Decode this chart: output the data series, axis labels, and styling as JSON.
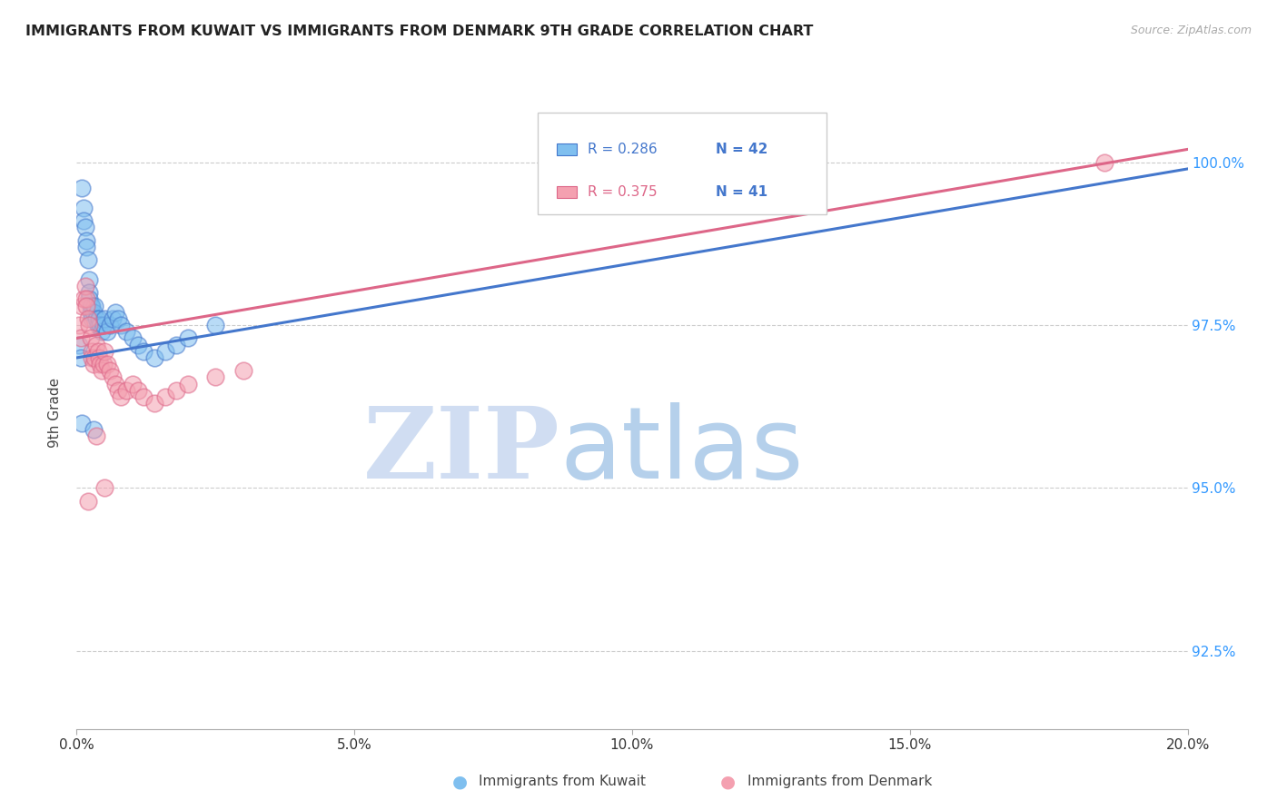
{
  "title": "IMMIGRANTS FROM KUWAIT VS IMMIGRANTS FROM DENMARK 9TH GRADE CORRELATION CHART",
  "source": "Source: ZipAtlas.com",
  "ylabel": "9th Grade",
  "y_ticks": [
    92.5,
    95.0,
    97.5,
    100.0
  ],
  "y_tick_labels": [
    "92.5%",
    "95.0%",
    "97.5%",
    "100.0%"
  ],
  "x_ticks": [
    0,
    5,
    10,
    15,
    20
  ],
  "x_tick_labels": [
    "0.0%",
    "5.0%",
    "10.0%",
    "15.0%",
    "20.0%"
  ],
  "x_min": 0.0,
  "x_max": 20.0,
  "y_min": 91.3,
  "y_max": 101.0,
  "kuwait_color": "#7fbfef",
  "denmark_color": "#f4a0b0",
  "kuwait_line_color": "#4477cc",
  "denmark_line_color": "#dd6688",
  "kuwait_R": "0.286",
  "kuwait_N": "42",
  "denmark_R": "0.375",
  "denmark_N": "41",
  "kuwait_x": [
    0.05,
    0.08,
    0.1,
    0.12,
    0.13,
    0.15,
    0.17,
    0.18,
    0.2,
    0.22,
    0.22,
    0.23,
    0.25,
    0.25,
    0.27,
    0.28,
    0.3,
    0.32,
    0.35,
    0.38,
    0.4,
    0.42,
    0.45,
    0.48,
    0.5,
    0.55,
    0.6,
    0.65,
    0.7,
    0.75,
    0.8,
    0.9,
    1.0,
    1.1,
    1.2,
    1.4,
    1.6,
    1.8,
    2.0,
    2.5,
    0.1,
    0.3
  ],
  "kuwait_y": [
    97.2,
    97.0,
    99.6,
    99.3,
    99.1,
    99.0,
    98.8,
    98.7,
    98.5,
    98.2,
    98.0,
    97.9,
    97.8,
    97.7,
    97.6,
    97.8,
    97.7,
    97.8,
    97.6,
    97.5,
    97.6,
    97.5,
    97.4,
    97.5,
    97.6,
    97.4,
    97.5,
    97.6,
    97.7,
    97.6,
    97.5,
    97.4,
    97.3,
    97.2,
    97.1,
    97.0,
    97.1,
    97.2,
    97.3,
    97.5,
    96.0,
    95.9
  ],
  "denmark_x": [
    0.05,
    0.08,
    0.1,
    0.12,
    0.15,
    0.17,
    0.18,
    0.2,
    0.22,
    0.25,
    0.27,
    0.28,
    0.3,
    0.32,
    0.35,
    0.38,
    0.4,
    0.42,
    0.45,
    0.48,
    0.5,
    0.55,
    0.6,
    0.65,
    0.7,
    0.75,
    0.8,
    0.9,
    1.0,
    1.1,
    1.2,
    1.4,
    1.6,
    1.8,
    2.0,
    2.5,
    3.0,
    0.35,
    0.5,
    18.5,
    0.2
  ],
  "denmark_y": [
    97.5,
    97.3,
    97.8,
    97.9,
    98.1,
    97.9,
    97.8,
    97.6,
    97.5,
    97.3,
    97.1,
    97.0,
    96.9,
    97.0,
    97.2,
    97.1,
    97.0,
    96.9,
    96.8,
    96.9,
    97.1,
    96.9,
    96.8,
    96.7,
    96.6,
    96.5,
    96.4,
    96.5,
    96.6,
    96.5,
    96.4,
    96.3,
    96.4,
    96.5,
    96.6,
    96.7,
    96.8,
    95.8,
    95.0,
    100.0,
    94.8
  ],
  "watermark_zip_color": "#c8d8f0",
  "watermark_atlas_color": "#a8c8e8",
  "legend_label_kuwait": "Immigrants from Kuwait",
  "legend_label_denmark": "Immigrants from Denmark",
  "kuwait_line_x0": 0.0,
  "kuwait_line_x1": 20.0,
  "kuwait_line_y0": 97.0,
  "kuwait_line_y1": 99.9,
  "denmark_line_x0": 0.0,
  "denmark_line_x1": 20.0,
  "denmark_line_y0": 97.3,
  "denmark_line_y1": 100.2
}
